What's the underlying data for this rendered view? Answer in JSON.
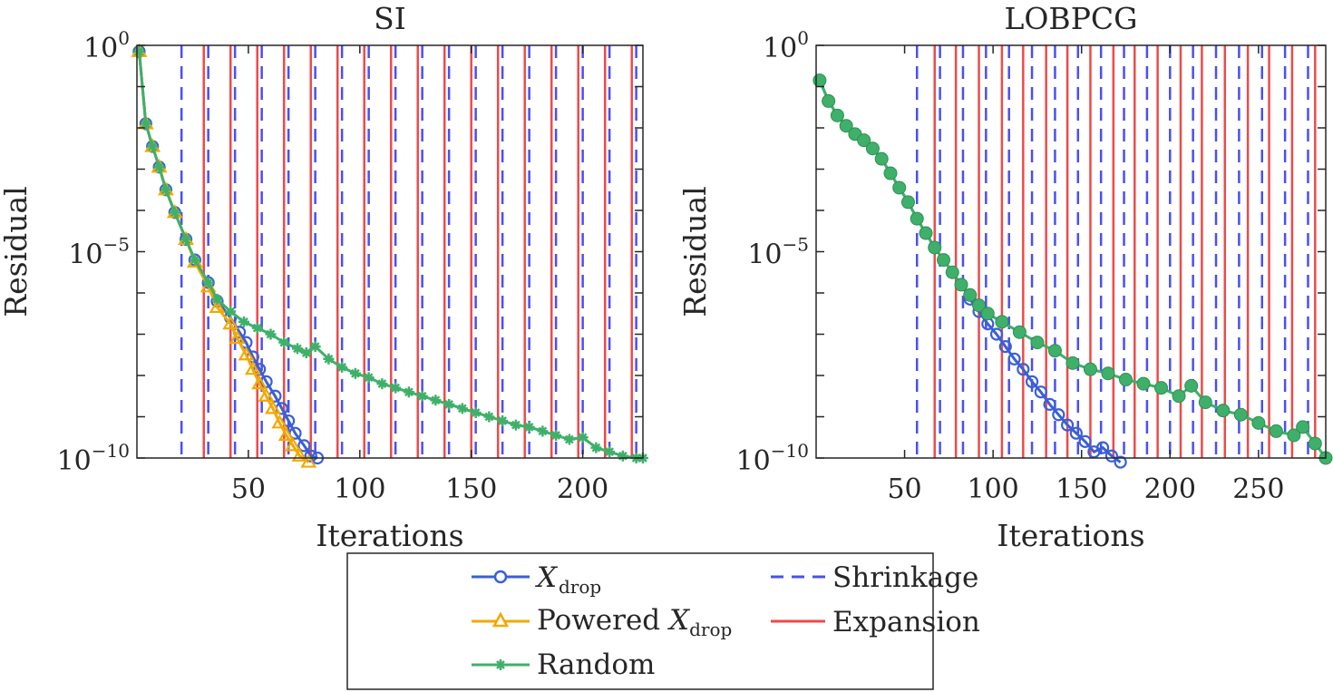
{
  "chart_data": [
    {
      "type": "line",
      "title": "SI",
      "xlabel": "Iterations",
      "ylabel": "Residual",
      "yscale": "log",
      "xlim": [
        0,
        227
      ],
      "ylim": [
        1e-10,
        1
      ],
      "xticks": [
        50,
        100,
        150,
        200
      ],
      "ytick_labels": [
        {
          "value": 1,
          "base": "10",
          "exp": "0"
        },
        {
          "value": 1e-05,
          "base": "10",
          "exp": "−5"
        },
        {
          "value": 1e-10,
          "base": "10",
          "exp": "−10"
        }
      ],
      "shrinkage_lines": [
        20,
        32,
        44,
        56,
        68,
        80,
        92,
        104,
        116,
        128,
        140,
        152,
        164,
        176,
        188,
        200,
        212,
        224
      ],
      "expansion_lines": [
        30,
        42,
        54,
        66,
        78,
        90,
        102,
        114,
        126,
        138,
        150,
        162,
        174,
        186,
        198,
        210,
        222
      ],
      "series": [
        {
          "name": "Xdrop",
          "color": "#3a5fd8",
          "marker": "circle",
          "x": [
            1,
            4,
            7,
            10,
            13,
            17,
            22,
            26,
            32,
            36,
            42,
            46,
            49,
            52,
            55,
            58,
            62,
            65,
            68,
            71,
            75,
            78,
            81
          ],
          "y": [
            -0.15,
            -1.9,
            -2.45,
            -2.95,
            -3.5,
            -4.05,
            -4.7,
            -5.2,
            -5.75,
            -6.2,
            -6.6,
            -6.95,
            -7.2,
            -7.55,
            -7.85,
            -8.15,
            -8.5,
            -8.8,
            -9.1,
            -9.4,
            -9.7,
            -9.95,
            -10.0
          ]
        },
        {
          "name": "Powered Xdrop",
          "color": "#f2a900",
          "marker": "triangle",
          "x": [
            1,
            4,
            7,
            10,
            13,
            17,
            22,
            26,
            32,
            36,
            42,
            45,
            49,
            52,
            55,
            58,
            61,
            64,
            67,
            70,
            73,
            77
          ],
          "y": [
            -0.15,
            -1.9,
            -2.45,
            -2.95,
            -3.5,
            -4.05,
            -4.7,
            -5.25,
            -5.85,
            -6.35,
            -6.75,
            -7.1,
            -7.5,
            -7.85,
            -8.2,
            -8.5,
            -8.8,
            -9.15,
            -9.45,
            -9.7,
            -9.95,
            -10.1
          ]
        },
        {
          "name": "Random",
          "color": "#3fb06a",
          "marker": "asterisk",
          "x": [
            1,
            4,
            7,
            10,
            13,
            17,
            22,
            26,
            32,
            36,
            42,
            48,
            54,
            60,
            66,
            72,
            76,
            80,
            86,
            92,
            98,
            104,
            110,
            116,
            122,
            128,
            134,
            140,
            146,
            152,
            158,
            164,
            170,
            176,
            182,
            188,
            194,
            200,
            206,
            212,
            218,
            224,
            227
          ],
          "y": [
            -0.15,
            -1.9,
            -2.45,
            -2.95,
            -3.5,
            -4.05,
            -4.7,
            -5.2,
            -5.75,
            -6.15,
            -6.45,
            -6.7,
            -6.85,
            -7.0,
            -7.2,
            -7.35,
            -7.45,
            -7.3,
            -7.6,
            -7.8,
            -7.95,
            -8.05,
            -8.2,
            -8.3,
            -8.4,
            -8.5,
            -8.6,
            -8.7,
            -8.8,
            -8.9,
            -9.0,
            -9.1,
            -9.2,
            -9.25,
            -9.35,
            -9.45,
            -9.55,
            -9.5,
            -9.75,
            -9.85,
            -9.95,
            -10.0,
            -10.0
          ]
        }
      ]
    },
    {
      "type": "line",
      "title": "LOBPCG",
      "xlabel": "Iterations",
      "ylabel": "Residual",
      "yscale": "log",
      "xlim": [
        0,
        288
      ],
      "ylim": [
        1e-10,
        1
      ],
      "xticks": [
        50,
        100,
        150,
        200,
        250
      ],
      "ytick_labels": [
        {
          "value": 1,
          "base": "10",
          "exp": "0"
        },
        {
          "value": 1e-05,
          "base": "10",
          "exp": "−5"
        },
        {
          "value": 1e-10,
          "base": "10",
          "exp": "−10"
        }
      ],
      "shrinkage_lines": [
        57,
        70,
        83,
        96,
        109,
        122,
        135,
        148,
        161,
        174,
        187,
        200,
        213,
        226,
        239,
        252,
        265,
        278
      ],
      "expansion_lines": [
        67,
        79,
        92,
        105,
        117,
        130,
        142,
        155,
        168,
        180,
        193,
        206,
        218,
        231,
        244,
        256,
        269,
        282
      ],
      "series": [
        {
          "name": "Xdrop",
          "color": "#3a5fd8",
          "marker": "circle",
          "x": [
            2,
            7,
            12,
            17,
            22,
            27,
            32,
            37,
            42,
            47,
            52,
            57,
            62,
            67,
            72,
            77,
            82,
            87,
            92,
            97,
            102,
            107,
            112,
            117,
            122,
            127,
            132,
            137,
            142,
            147,
            152,
            157,
            162,
            167,
            172
          ],
          "y": [
            -0.85,
            -1.35,
            -1.7,
            -1.95,
            -2.15,
            -2.3,
            -2.5,
            -2.75,
            -3.1,
            -3.45,
            -3.8,
            -4.2,
            -4.55,
            -4.9,
            -5.2,
            -5.5,
            -5.8,
            -6.15,
            -6.45,
            -6.75,
            -7.0,
            -7.3,
            -7.6,
            -7.85,
            -8.15,
            -8.4,
            -8.7,
            -8.95,
            -9.2,
            -9.4,
            -9.6,
            -9.85,
            -9.75,
            -9.95,
            -10.1
          ]
        },
        {
          "name": "Random",
          "color": "#3fb06a",
          "marker": "filled-circle",
          "x": [
            2,
            7,
            12,
            17,
            22,
            27,
            32,
            37,
            42,
            47,
            52,
            57,
            62,
            67,
            72,
            77,
            82,
            87,
            92,
            97,
            105,
            115,
            125,
            135,
            145,
            155,
            165,
            175,
            185,
            195,
            205,
            212,
            220,
            230,
            240,
            250,
            260,
            270,
            275,
            282,
            288
          ],
          "y": [
            -0.85,
            -1.35,
            -1.7,
            -1.95,
            -2.15,
            -2.3,
            -2.5,
            -2.75,
            -3.1,
            -3.45,
            -3.8,
            -4.2,
            -4.55,
            -4.9,
            -5.2,
            -5.5,
            -5.8,
            -6.05,
            -6.3,
            -6.5,
            -6.7,
            -6.95,
            -7.2,
            -7.4,
            -7.7,
            -7.85,
            -7.95,
            -8.1,
            -8.2,
            -8.3,
            -8.5,
            -8.25,
            -8.65,
            -8.85,
            -8.95,
            -9.15,
            -9.35,
            -9.45,
            -9.25,
            -9.65,
            -10.0
          ]
        }
      ]
    }
  ],
  "legend": {
    "items": [
      {
        "kind": "series",
        "marker": "circle",
        "color": "#3a5fd8",
        "label": "X",
        "sub": "drop"
      },
      {
        "kind": "series",
        "marker": "triangle",
        "color": "#f2a900",
        "label_prefix": "Powered ",
        "label": "X",
        "sub": "drop"
      },
      {
        "kind": "series",
        "marker": "asterisk",
        "color": "#3fb06a",
        "label": "Random"
      },
      {
        "kind": "line",
        "style": "dashed",
        "color": "#4a50f0",
        "label": "Shrinkage"
      },
      {
        "kind": "line",
        "style": "solid",
        "color": "#ee4a4a",
        "label": "Expansion"
      }
    ]
  }
}
